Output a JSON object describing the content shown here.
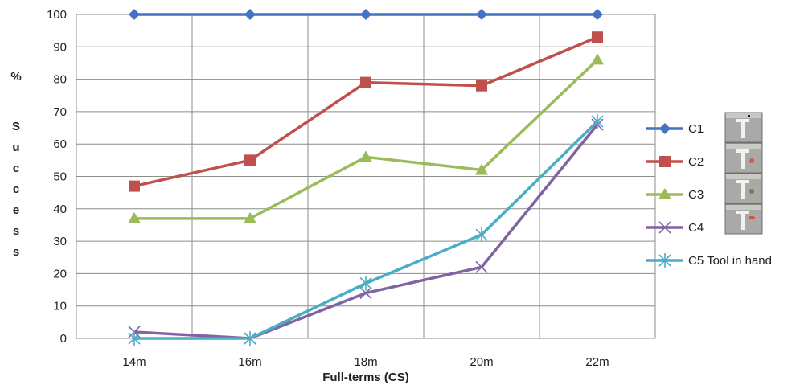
{
  "chart_data": {
    "type": "line",
    "title": "",
    "xlabel": "Full-terms (CS)",
    "ylabel": "% Success",
    "categories": [
      "14m",
      "16m",
      "18m",
      "20m",
      "22m"
    ],
    "ylim": [
      0,
      100
    ],
    "yticks": [
      0,
      10,
      20,
      30,
      40,
      50,
      60,
      70,
      80,
      90,
      100
    ],
    "grid": true,
    "legend_position": "right",
    "series": [
      {
        "name": "C1",
        "color": "#4472c4",
        "marker": "diamond",
        "values": [
          100,
          100,
          100,
          100,
          100
        ]
      },
      {
        "name": "C2",
        "color": "#c0504d",
        "marker": "square",
        "values": [
          47,
          55,
          79,
          78,
          93
        ]
      },
      {
        "name": "C3",
        "color": "#9bbb59",
        "marker": "triangle",
        "values": [
          37,
          37,
          56,
          52,
          86
        ]
      },
      {
        "name": "C4",
        "color": "#8064a2",
        "marker": "x",
        "values": [
          2,
          0,
          14,
          22,
          66
        ]
      },
      {
        "name": "C5 Tool in hand",
        "color": "#4bacc6",
        "marker": "asterisk",
        "values": [
          0,
          0,
          17,
          32,
          67
        ]
      }
    ],
    "legend_thumbnails": [
      "tool-photo-c1",
      "tool-photo-c2",
      "tool-photo-c3",
      "tool-photo-c4"
    ]
  }
}
